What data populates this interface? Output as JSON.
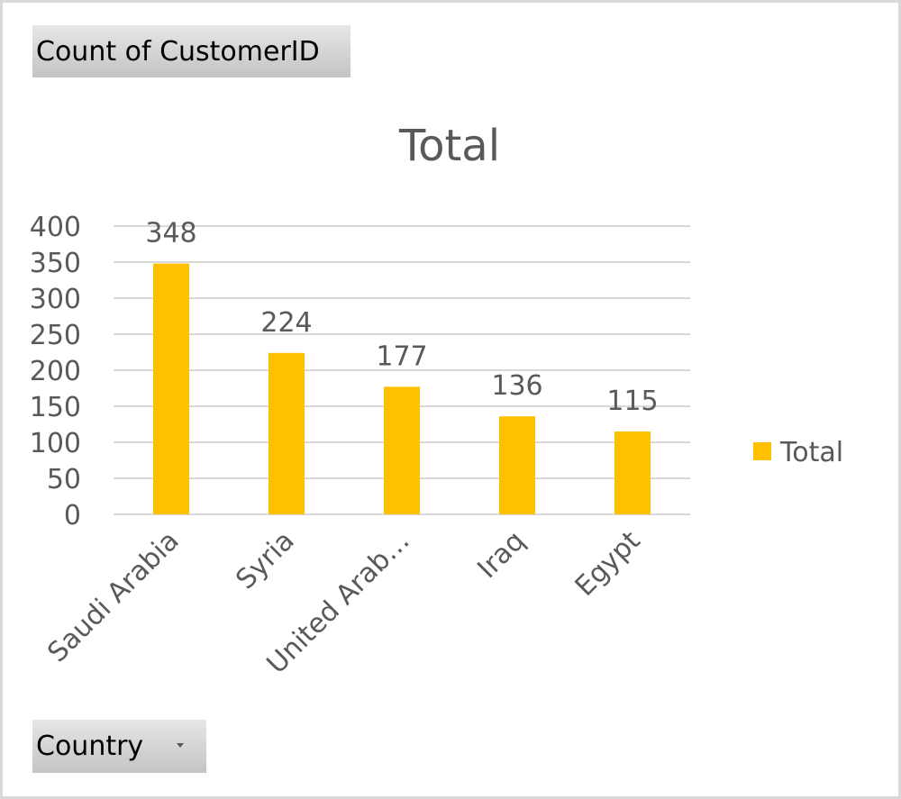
{
  "value_field_button": {
    "label": "Count of CustomerID"
  },
  "axis_field_button": {
    "label": "Country",
    "icon": "dropdown-arrow-icon"
  },
  "chart_data": {
    "type": "bar",
    "title": "Total",
    "categories": [
      "Saudi Arabia",
      "Syria",
      "United Arab…",
      "Iraq",
      "Egypt"
    ],
    "series": [
      {
        "name": "Total",
        "values": [
          348,
          224,
          177,
          136,
          115
        ],
        "color": "#FFC000"
      }
    ],
    "ylim": [
      0,
      400
    ],
    "yticks": [
      0,
      50,
      100,
      150,
      200,
      250,
      300,
      350,
      400
    ],
    "grid": true,
    "data_labels": true,
    "legend": "right",
    "colors": {
      "bar": "#FFC000",
      "grid": "#d9d9d9",
      "text": "#595959"
    }
  }
}
